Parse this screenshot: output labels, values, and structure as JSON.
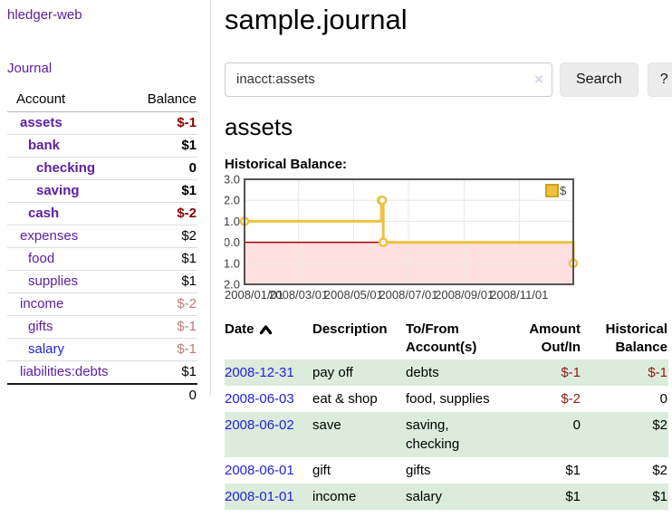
{
  "colors": {
    "link_purple": "#5b21a0",
    "link_blue": "#2222dd",
    "negative_dark": "#8b0000",
    "negative_light": "#bd7b7b",
    "register_negative": "#8b1a1a",
    "row_stripe_green": "#dcecdc",
    "chart_line_yellow": "#edc240",
    "chart_negative_region_pink": "#ffdfdf",
    "chart_zero_line_red": "#aa0000"
  },
  "sidebar": {
    "app_title": "hledger-web",
    "journal_label": "Journal",
    "table": {
      "account_header": "Account",
      "balance_header": "Balance",
      "accounts": [
        {
          "name": "assets",
          "balance": "$-1",
          "depth": 1
        },
        {
          "name": "bank",
          "balance": "$1",
          "depth": 2
        },
        {
          "name": "checking",
          "balance": "0",
          "depth": 3
        },
        {
          "name": "saving",
          "balance": "$1",
          "depth": 3
        },
        {
          "name": "cash",
          "balance": "$-2",
          "depth": 2
        },
        {
          "name": "expenses",
          "balance": "$2",
          "depth": 1
        },
        {
          "name": "food",
          "balance": "$1",
          "depth": 2
        },
        {
          "name": "supplies",
          "balance": "$1",
          "depth": 2
        },
        {
          "name": "income",
          "balance": "$-2",
          "depth": 1
        },
        {
          "name": "gifts",
          "balance": "$-1",
          "depth": 2
        },
        {
          "name": "salary",
          "balance": "$-1",
          "depth": 2
        },
        {
          "name": "liabilities:debts",
          "balance": "$1",
          "depth": 1
        }
      ],
      "total": "0"
    }
  },
  "main": {
    "title": "sample.journal",
    "search": {
      "value": "inacct:assets",
      "clear_icon": "×",
      "button_label": "Search",
      "help_label": "?"
    },
    "account_heading": "assets",
    "chart_label": "Historical Balance:"
  },
  "chart_data": {
    "type": "line",
    "step": true,
    "title": "Historical Balance",
    "legend_position": "top-right",
    "ylim": [
      -2.0,
      3.0
    ],
    "y_ticks": [
      "3.0",
      "2.0",
      "1.0",
      "0.0",
      "-1.0",
      "-2.0"
    ],
    "y_tick_values": [
      3,
      2,
      1,
      0,
      -1,
      -2
    ],
    "x_ticks": [
      "2008/01/01",
      "2008/03/01",
      "2008/05/01",
      "2008/07/01",
      "2008/09/01",
      "2008/11/01"
    ],
    "x_tick_days": [
      0,
      60,
      121,
      182,
      244,
      305
    ],
    "x_range_days": [
      0,
      365
    ],
    "negative_region_shaded": true,
    "series": [
      {
        "name": "$",
        "points": [
          {
            "date": "2008-01-01",
            "day": 0,
            "value": 1
          },
          {
            "date": "2008-06-01",
            "day": 152,
            "value": 2
          },
          {
            "date": "2008-06-02",
            "day": 153,
            "value": 2
          },
          {
            "date": "2008-06-03",
            "day": 154,
            "value": 0
          },
          {
            "date": "2008-12-31",
            "day": 365,
            "value": -1
          }
        ]
      }
    ]
  },
  "register": {
    "headers": {
      "date": "Date",
      "description": "Description",
      "accounts": "To/From Account(s)",
      "amount": "Amount Out/In",
      "balance": "Historical Balance"
    },
    "rows": [
      {
        "date": "2008-12-31",
        "description": "pay off",
        "accounts": "debts",
        "amount": "$-1",
        "balance": "$-1"
      },
      {
        "date": "2008-06-03",
        "description": "eat & shop",
        "accounts": "food, supplies",
        "amount": "$-2",
        "balance": "0"
      },
      {
        "date": "2008-06-02",
        "description": "save",
        "accounts": "saving, checking",
        "amount": "0",
        "balance": "$2"
      },
      {
        "date": "2008-06-01",
        "description": "gift",
        "accounts": "gifts",
        "amount": "$1",
        "balance": "$2"
      },
      {
        "date": "2008-01-01",
        "description": "income",
        "accounts": "salary",
        "amount": "$1",
        "balance": "$1"
      }
    ]
  }
}
